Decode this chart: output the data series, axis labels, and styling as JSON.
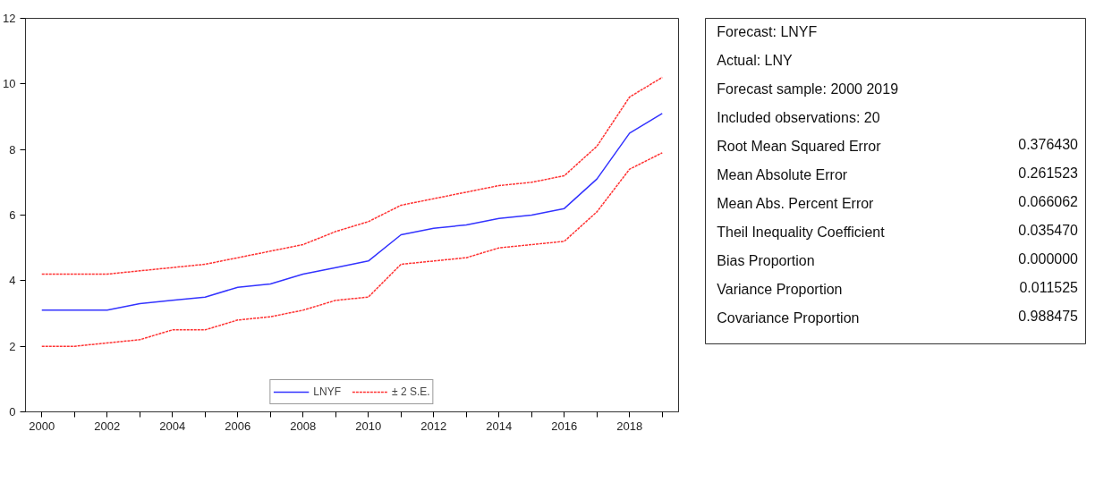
{
  "chart_data": [
    {
      "type": "line",
      "x": [
        2000,
        2001,
        2002,
        2003,
        2004,
        2005,
        2006,
        2007,
        2008,
        2009,
        2010,
        2011,
        2012,
        2013,
        2014,
        2015,
        2016,
        2017,
        2018,
        2019
      ],
      "series": [
        {
          "name": "LNYF",
          "color": "#3333ff",
          "line_style": "solid",
          "values": [
            3.1,
            3.1,
            3.1,
            3.3,
            3.4,
            3.5,
            3.8,
            3.9,
            4.2,
            4.4,
            4.6,
            5.4,
            5.6,
            5.7,
            5.9,
            6.0,
            6.2,
            7.1,
            8.5,
            9.1
          ]
        },
        {
          "name": "± 2 S.E.",
          "color": "#ff3333",
          "line_style": "dashed",
          "values": [
            4.2,
            4.2,
            4.2,
            4.3,
            4.4,
            4.5,
            4.7,
            4.9,
            5.1,
            5.5,
            5.8,
            6.3,
            6.5,
            6.7,
            6.9,
            7.0,
            7.2,
            8.1,
            9.6,
            10.2
          ]
        },
        {
          "color": "#ff3333",
          "line_style": "dashed",
          "values": [
            2.0,
            2.0,
            2.1,
            2.2,
            2.5,
            2.5,
            2.8,
            2.9,
            3.1,
            3.4,
            3.5,
            4.5,
            4.6,
            4.7,
            5.0,
            5.1,
            5.2,
            6.1,
            7.4,
            7.9
          ]
        }
      ],
      "xlim": [
        1999.5,
        2019.5
      ],
      "xticks": [
        2000,
        {
          "value": 2001,
          "label": null
        },
        2002,
        {
          "value": 2003,
          "label": null
        },
        2004,
        {
          "value": 2005,
          "label": null
        },
        2006,
        {
          "value": 2007,
          "label": null
        },
        2008,
        {
          "value": 2009,
          "label": null
        },
        2010,
        {
          "value": 2011,
          "label": null
        },
        2012,
        {
          "value": 2013,
          "label": null
        },
        2014,
        {
          "value": 2015,
          "label": null
        },
        2016,
        {
          "value": 2017,
          "label": null
        },
        2018,
        {
          "value": 2019,
          "label": null
        }
      ],
      "ylim": [
        0,
        12
      ],
      "yticks": [
        0,
        2,
        4,
        6,
        8,
        10,
        12
      ],
      "grid": false,
      "legend": "bottom"
    },
    {
      "type": "other",
      "categories": [
        "Forecast: LNYF",
        "Actual: LNY",
        "Forecast sample: 2000 2019",
        "Included observations: 20",
        "Root Mean Squared Error",
        "Mean Absolute Error",
        "Mean Abs. Percent Error",
        "Theil Inequality Coefficient",
        "Bias Proportion",
        "Variance Proportion",
        "Covariance Proportion"
      ],
      "value_labels": [
        null,
        null,
        null,
        null,
        "0.376430",
        "0.261523",
        "0.066062",
        "0.035470",
        "0.000000",
        "0.011525",
        "0.988475"
      ]
    }
  ]
}
